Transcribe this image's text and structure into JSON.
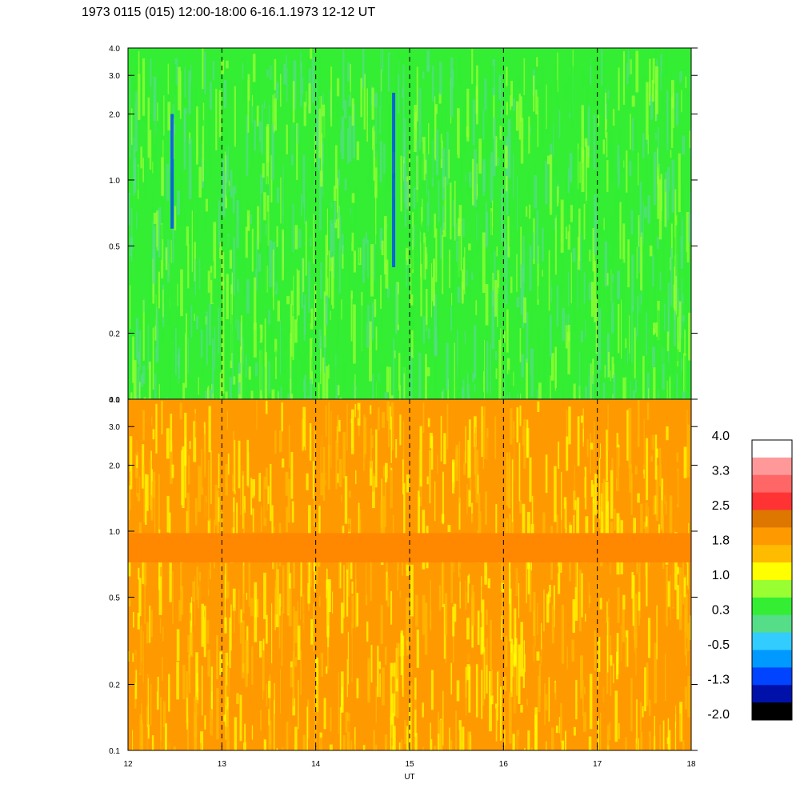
{
  "title": "1973 0115 (015) 12:00-18:00 6-16.1.1973  12-12 UT",
  "chart_data": [
    {
      "type": "heatmap",
      "panel": "upper",
      "y_scale": "log",
      "ylim": [
        0.1,
        4.0
      ],
      "y_ticks": [
        0.1,
        0.2,
        0.5,
        1.0,
        2.0,
        3.0,
        4.0
      ],
      "y_tick_labels": [
        "0.1",
        "0.2",
        "0.5",
        "1.0",
        "2.0",
        "3.0",
        "4.0"
      ],
      "xlim": [
        12,
        18
      ],
      "x_ticks": [
        12,
        13,
        14,
        15,
        16,
        17,
        18
      ],
      "dashed_lines_x": [
        13,
        14,
        15,
        16,
        17
      ],
      "dominant_colors": [
        "#33ee33",
        "#55dd88",
        "#99ff33"
      ],
      "features": [
        {
          "x": 12.47,
          "y_range": [
            0.6,
            2.0
          ],
          "level": -1.3
        },
        {
          "x": 14.83,
          "y_range": [
            0.4,
            2.5
          ],
          "level": -1.3
        }
      ]
    },
    {
      "type": "heatmap",
      "panel": "lower",
      "y_scale": "log",
      "ylim": [
        0.1,
        4.0
      ],
      "y_ticks": [
        0.1,
        0.2,
        0.5,
        1.0,
        2.0,
        3.0,
        4.0
      ],
      "y_tick_labels": [
        "0.1",
        "0.2",
        "0.5",
        "1.0",
        "2.0",
        "3.0",
        "4.0"
      ],
      "xlim": [
        12,
        18
      ],
      "x_ticks": [
        12,
        13,
        14,
        15,
        16,
        17,
        18
      ],
      "x_tick_labels": [
        "12",
        "13",
        "14",
        "15",
        "16",
        "17",
        "18"
      ],
      "xlabel": "UT",
      "dashed_lines_x": [
        13,
        14,
        15,
        16,
        17
      ],
      "dominant_colors": [
        "#ff9900",
        "#ffbb00",
        "#ffff00"
      ],
      "band": {
        "y_range": [
          0.72,
          0.98
        ],
        "level": 2.0,
        "color": "#ff8800"
      }
    }
  ],
  "colorbar": {
    "labels": [
      "4.0",
      "3.3",
      "2.5",
      "1.8",
      "1.0",
      "0.3",
      "-0.5",
      "-1.3",
      "-2.0"
    ],
    "colors": [
      "#ffffff",
      "#ff9999",
      "#ff6666",
      "#ff3333",
      "#dd7700",
      "#ff9900",
      "#ffbb00",
      "#ffff00",
      "#99ff33",
      "#33ee33",
      "#55dd88",
      "#33ccff",
      "#0099ff",
      "#0044ff",
      "#0011aa",
      "#000000"
    ]
  }
}
